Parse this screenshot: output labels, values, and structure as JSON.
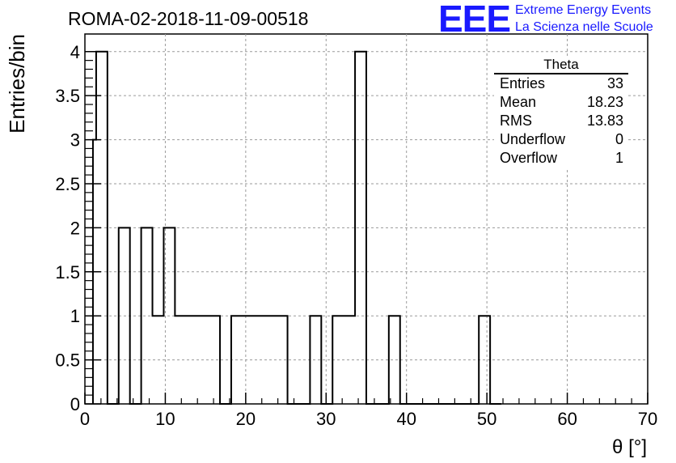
{
  "title": "ROMA-02-2018-11-09-00518",
  "logo": {
    "mark": "EEE",
    "line1": "Extreme Energy Events",
    "line2": "La Scienza nelle Scuole",
    "color": "#1a1aff"
  },
  "stats_box": {
    "title": "Theta",
    "rows": [
      {
        "label": "Entries",
        "value": "33"
      },
      {
        "label": "Mean",
        "value": "18.23"
      },
      {
        "label": "RMS",
        "value": "13.83"
      },
      {
        "label": "Underflow",
        "value": "0"
      },
      {
        "label": "Overflow",
        "value": "1"
      }
    ]
  },
  "chart_data": {
    "type": "bar",
    "histogram": true,
    "xlabel": "θ [°]",
    "ylabel": "Entries/bin",
    "xlim": [
      0,
      70
    ],
    "ylim": [
      0,
      4.2
    ],
    "grid": true,
    "line_color": "#000000",
    "x_ticks": [
      0,
      10,
      20,
      30,
      40,
      50,
      60,
      70
    ],
    "y_ticks": [
      0,
      0.5,
      1,
      1.5,
      2,
      2.5,
      3,
      3.5,
      4
    ],
    "y_tick_labels": [
      "0",
      "0.5",
      "1",
      "1.5",
      "2",
      "2.5",
      "3",
      "3.5",
      "4"
    ],
    "bin_edges": [
      1.0,
      1.4,
      2.8,
      4.2,
      5.6,
      7.0,
      8.4,
      9.8,
      11.2,
      12.6,
      14.0,
      15.4,
      16.8,
      18.2,
      19.6,
      21.0,
      22.4,
      23.8,
      25.2,
      26.6,
      28.0,
      29.4,
      30.8,
      32.2,
      33.6,
      35.0,
      36.4,
      37.8,
      39.2,
      40.6,
      42.0,
      43.4,
      44.8,
      46.2,
      47.6,
      49.0,
      50.4,
      51.8
    ],
    "values": [
      3,
      4,
      0,
      2,
      0,
      2,
      1,
      2,
      1,
      1,
      1,
      1,
      0,
      1,
      1,
      1,
      1,
      1,
      0,
      0,
      1,
      0,
      1,
      1,
      4,
      0,
      0,
      1,
      0,
      0,
      0,
      0,
      0,
      0,
      0,
      1,
      0
    ]
  }
}
